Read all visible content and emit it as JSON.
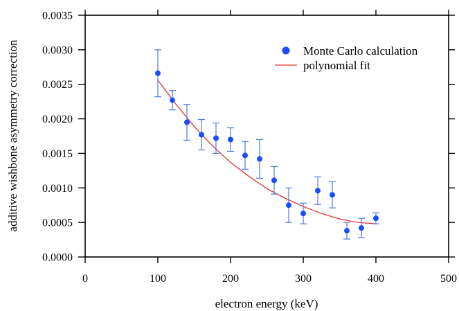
{
  "chart_data": {
    "type": "scatter",
    "xlabel": "electron energy (keV)",
    "ylabel": "additive wishbone asymmetry correction",
    "xlim": [
      0,
      500
    ],
    "ylim": [
      0,
      0.0035
    ],
    "x_ticks": [
      0,
      100,
      200,
      300,
      400,
      500
    ],
    "x_tick_labels": [
      "0",
      "100",
      "200",
      "300",
      "400",
      "500"
    ],
    "y_ticks": [
      0,
      0.0005,
      0.001,
      0.0015,
      0.002,
      0.0025,
      0.003,
      0.0035
    ],
    "y_tick_labels": [
      "0.0000",
      "0.0005",
      "0.0010",
      "0.0015",
      "0.0020",
      "0.0025",
      "0.0030",
      "0.0035"
    ],
    "grid": false,
    "legend_position": "top-right",
    "series": [
      {
        "name": "Monte Carlo calculation",
        "kind": "points-with-error-bars",
        "color": "#1a4cff",
        "errorbar_color": "#4a7be0",
        "x": [
          100,
          120,
          140,
          160,
          180,
          200,
          220,
          240,
          260,
          280,
          300,
          320,
          340,
          360,
          380,
          400
        ],
        "y": [
          0.00266,
          0.00227,
          0.00195,
          0.00177,
          0.00172,
          0.0017,
          0.00147,
          0.00142,
          0.00111,
          0.00075,
          0.00063,
          0.00096,
          0.0009,
          0.00038,
          0.00042,
          0.00056
        ],
        "y_err": [
          0.00034,
          0.00014,
          0.00026,
          0.00022,
          0.00022,
          0.00017,
          0.0002,
          0.00028,
          0.0002,
          0.00025,
          0.00015,
          0.0002,
          0.00019,
          0.00012,
          0.00014,
          8e-05
        ]
      },
      {
        "name": "polynomial fit",
        "kind": "line",
        "color": "#e53030",
        "x": [
          100,
          125,
          150,
          175,
          200,
          225,
          250,
          275,
          300,
          325,
          350,
          375,
          400
        ],
        "y": [
          0.00256,
          0.00221,
          0.00189,
          0.00161,
          0.00137,
          0.00117,
          0.00099,
          0.00085,
          0.00073,
          0.00063,
          0.00055,
          0.0005,
          0.00048
        ]
      }
    ]
  }
}
